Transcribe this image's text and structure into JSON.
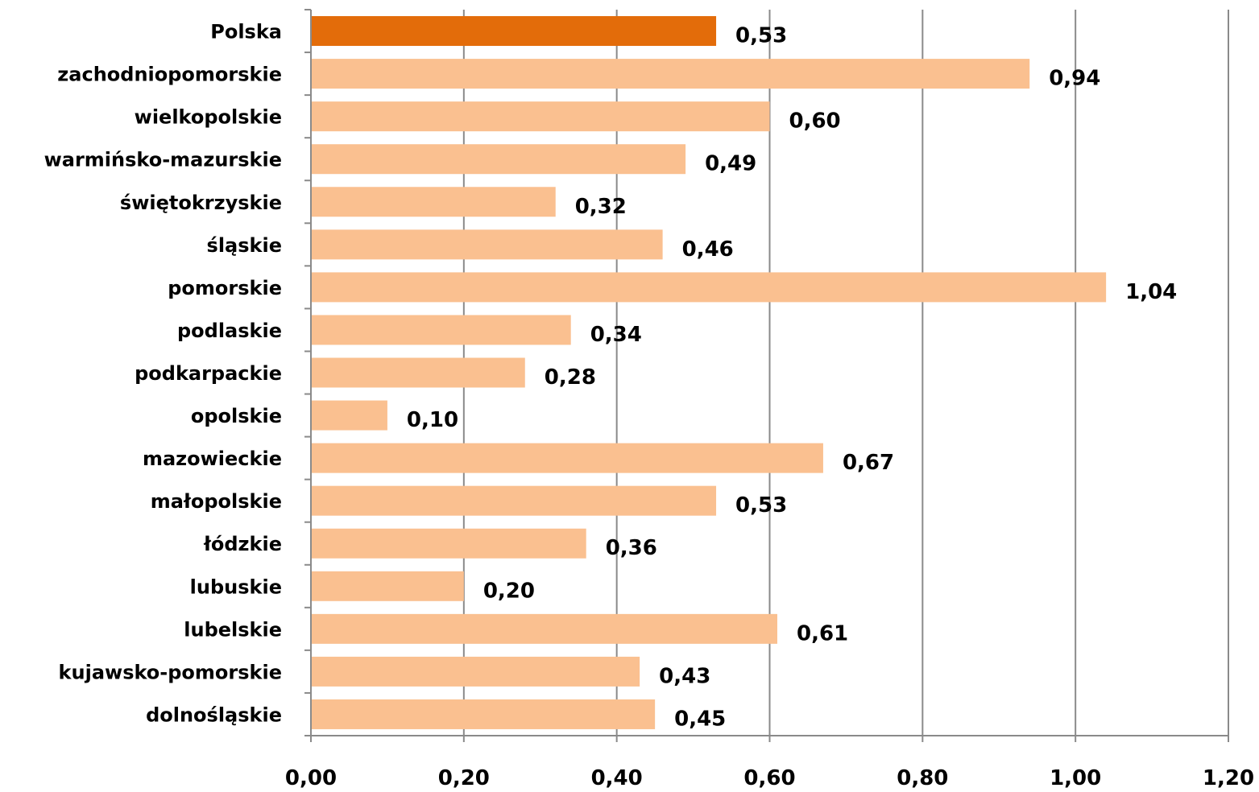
{
  "chart_data": {
    "type": "bar",
    "orientation": "horizontal",
    "title": "",
    "xlabel": "",
    "ylabel": "",
    "xlim": [
      0,
      1.2
    ],
    "x_ticks": [
      "0,00",
      "0,20",
      "0,40",
      "0,60",
      "0,80",
      "1,00",
      "1,20"
    ],
    "x_tick_values": [
      0,
      0.2,
      0.4,
      0.6,
      0.8,
      1.0,
      1.2
    ],
    "grid": "vertical major gridlines",
    "legend": "none",
    "colors": {
      "highlight": "#e36c0a",
      "default": "#fac090",
      "grid": "#8a8a8a"
    },
    "categories": [
      "Polska",
      "zachodniopomorskie",
      "wielkopolskie",
      "warmińsko-mazurskie",
      "świętokrzyskie",
      "śląskie",
      "pomorskie",
      "podlaskie",
      "podkarpackie",
      "opolskie",
      "mazowieckie",
      "małopolskie",
      "łódzkie",
      "lubuskie",
      "lubelskie",
      "kujawsko-pomorskie",
      "dolnośląskie"
    ],
    "values": [
      0.53,
      0.94,
      0.6,
      0.49,
      0.32,
      0.46,
      1.04,
      0.34,
      0.28,
      0.1,
      0.67,
      0.53,
      0.36,
      0.2,
      0.61,
      0.43,
      0.45
    ],
    "value_labels": [
      "0,53",
      "0,94",
      "0,60",
      "0,49",
      "0,32",
      "0,46",
      "1,04",
      "0,34",
      "0,28",
      "0,10",
      "0,67",
      "0,53",
      "0,36",
      "0,20",
      "0,61",
      "0,43",
      "0,45"
    ],
    "highlighted_category": "Polska"
  }
}
